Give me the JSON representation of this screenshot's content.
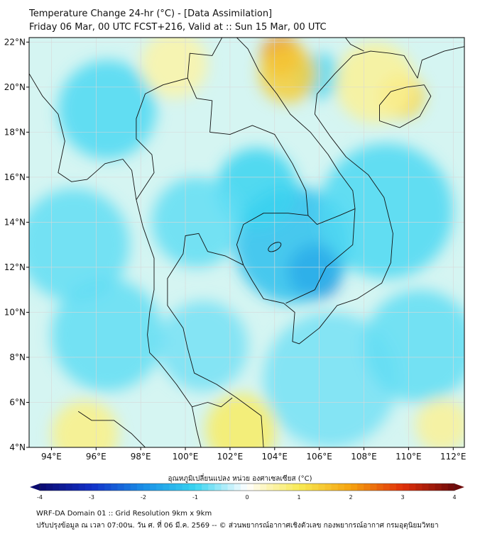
{
  "title": {
    "line1": "Temperature Change 24-hr (°C) - [Data Assimilation]",
    "line2": "Friday 06 Mar, 00 UTC FCST+216, Valid at :: Sun 15 Mar, 00 UTC"
  },
  "map": {
    "lat_labels": [
      "22°N",
      "20°N",
      "18°N",
      "16°N",
      "14°N",
      "12°N",
      "10°N",
      "8°N",
      "6°N",
      "4°N"
    ],
    "lon_labels": [
      "94°E",
      "96°E",
      "98°E",
      "100°E",
      "102°E",
      "104°E",
      "106°E",
      "108°E",
      "110°E",
      "112°E"
    ],
    "lat_values": [
      22,
      20,
      18,
      16,
      14,
      12,
      10,
      8,
      6,
      4
    ],
    "lon_values": [
      94,
      96,
      98,
      100,
      102,
      104,
      106,
      108,
      110,
      112
    ],
    "extent": {
      "lon_min": 93,
      "lon_max": 112.5,
      "lat_min": 4,
      "lat_max": 22.2
    },
    "background_color": "#fffde8",
    "border_color": "#111111",
    "grid_color": "#d8d8d8",
    "features": [
      {
        "type": "cold",
        "lon": 105.8,
        "lat": 11.8,
        "r": 1.2,
        "level": -2.8
      },
      {
        "type": "cold",
        "lon": 104.8,
        "lat": 13.0,
        "r": 2.6,
        "level": -1.3
      },
      {
        "type": "cold",
        "lon": 103.2,
        "lat": 15.5,
        "r": 1.8,
        "level": -1.0
      },
      {
        "type": "cold",
        "lon": 96.5,
        "lat": 19.0,
        "r": 2.2,
        "level": -0.9
      },
      {
        "type": "cold",
        "lon": 100.5,
        "lat": 14.0,
        "r": 2.0,
        "level": -0.8
      },
      {
        "type": "cold",
        "lon": 109.0,
        "lat": 14.5,
        "r": 3.0,
        "level": -0.9
      },
      {
        "type": "cold",
        "lon": 95.0,
        "lat": 13.0,
        "r": 2.5,
        "level": -0.8
      },
      {
        "type": "cold",
        "lon": 106.5,
        "lat": 7.0,
        "r": 3.0,
        "level": -0.7
      },
      {
        "type": "cold",
        "lon": 110.5,
        "lat": 8.5,
        "r": 2.5,
        "level": -0.8
      },
      {
        "type": "cold",
        "lon": 100.8,
        "lat": 8.5,
        "r": 2.0,
        "level": -0.7
      },
      {
        "type": "cold",
        "lon": 96.5,
        "lat": 9.0,
        "r": 2.5,
        "level": -0.8
      },
      {
        "type": "cold",
        "lon": 106.0,
        "lat": 20.5,
        "r": 1.0,
        "level": -0.9
      },
      {
        "type": "warm",
        "lon": 104.3,
        "lat": 21.4,
        "r": 0.9,
        "level": 2.3
      },
      {
        "type": "warm",
        "lon": 104.6,
        "lat": 20.6,
        "r": 1.3,
        "level": 1.4
      },
      {
        "type": "warm",
        "lon": 109.7,
        "lat": 19.6,
        "r": 1.0,
        "level": 1.3
      },
      {
        "type": "warm",
        "lon": 108.5,
        "lat": 20.2,
        "r": 1.8,
        "level": 0.6
      },
      {
        "type": "warm",
        "lon": 102.5,
        "lat": 4.8,
        "r": 1.6,
        "level": 0.9
      },
      {
        "type": "warm",
        "lon": 95.5,
        "lat": 4.6,
        "r": 1.5,
        "level": 0.7
      },
      {
        "type": "warm",
        "lon": 99.5,
        "lat": 21.0,
        "r": 1.5,
        "level": 0.5
      },
      {
        "type": "warm",
        "lon": 111.5,
        "lat": 5.0,
        "r": 1.2,
        "level": 0.6
      }
    ]
  },
  "colorbar": {
    "label": "อุณหภูมิเปลี่ยนแปลง หน่วย องศาเซลเซียส (°C)",
    "ticks": [
      "-4",
      "-3",
      "-2",
      "-1",
      "0",
      "1",
      "2",
      "3",
      "4"
    ],
    "tick_values": [
      -4,
      -3,
      -2,
      -1,
      0,
      1,
      2,
      3,
      4
    ],
    "range": [
      -4,
      4
    ],
    "stops": [
      {
        "v": -4,
        "c": "#0a0a6e"
      },
      {
        "v": -3,
        "c": "#1230c8"
      },
      {
        "v": -2,
        "c": "#1a8fe6"
      },
      {
        "v": -1,
        "c": "#38d4f0"
      },
      {
        "v": -0.3,
        "c": "#c8f2fb"
      },
      {
        "v": 0,
        "c": "#ffffff"
      },
      {
        "v": 0.3,
        "c": "#fdf7c8"
      },
      {
        "v": 1,
        "c": "#f7ea55"
      },
      {
        "v": 2,
        "c": "#f5a30f"
      },
      {
        "v": 3,
        "c": "#e0300a"
      },
      {
        "v": 4,
        "c": "#6e0a0a"
      }
    ]
  },
  "footer": {
    "line1": "WRF-DA Domain 01 :: Grid Resolution 9km x 9km",
    "line2": "ปรับปรุงข้อมูล ณ เวลา 07:00น. วัน ศ. ที่ 06 มี.ค. 2569 -- © ส่วนพยากรณ์อากาศเชิงตัวเลข กองพยากรณ์อากาศ กรมอุตุนิยมวิทยา"
  }
}
